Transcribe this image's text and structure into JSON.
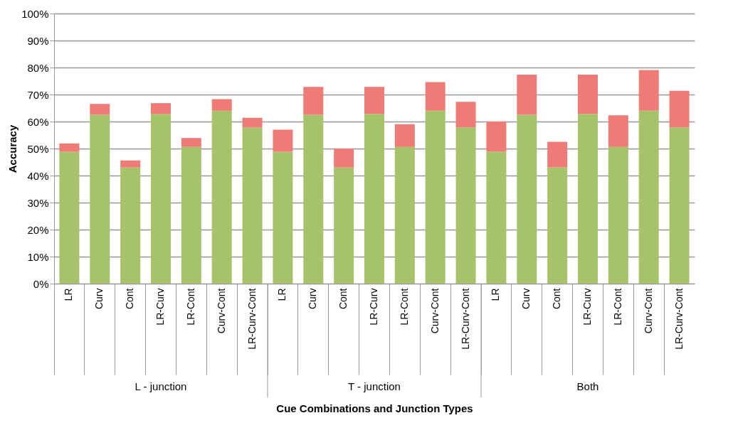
{
  "chart_data": {
    "type": "bar",
    "stacked": true,
    "xlabel": "Cue Combinations and Junction Types",
    "ylabel": "Accuracy",
    "categories": [
      "LR",
      "Curv",
      "Cont",
      "LR-Curv",
      "LR-Cont",
      "Curv-Cont",
      "LR-Curv-Cont",
      "LR",
      "Curv",
      "Cont",
      "LR-Curv",
      "LR-Cont",
      "Curv-Cont",
      "LR-Curv-Cont",
      "LR",
      "Curv",
      "Cont",
      "LR-Curv",
      "LR-Cont",
      "Curv-Cont",
      "LR-Curv-Cont"
    ],
    "series": [
      {
        "color": "#a7c36a",
        "values": [
          48.8,
          62.5,
          43.0,
          62.8,
          50.6,
          64.0,
          57.8,
          48.8,
          62.5,
          43.0,
          62.8,
          50.6,
          64.0,
          57.8,
          48.8,
          62.5,
          43.0,
          62.8,
          50.6,
          64.0,
          57.8
        ]
      },
      {
        "color": "#ef7b76",
        "values": [
          3.1,
          4.0,
          2.6,
          4.0,
          3.3,
          4.3,
          3.6,
          8.2,
          10.3,
          7.0,
          10.0,
          8.4,
          10.6,
          9.5,
          11.2,
          14.9,
          9.5,
          14.6,
          11.7,
          15.1,
          13.6
        ]
      }
    ],
    "annotations": [
      "L - junction",
      "T - junction",
      "Both"
    ],
    "ylim": [
      0,
      100
    ],
    "yticks": [
      {
        "value": 0,
        "label": "0%"
      },
      {
        "value": 10,
        "label": "10%"
      },
      {
        "value": 20,
        "label": "20%"
      },
      {
        "value": 30,
        "label": "30%"
      },
      {
        "value": 40,
        "label": "40%"
      },
      {
        "value": 50,
        "label": "50%"
      },
      {
        "value": 60,
        "label": "60%"
      },
      {
        "value": 70,
        "label": "70%"
      },
      {
        "value": 80,
        "label": "80%"
      },
      {
        "value": 90,
        "label": "90%"
      },
      {
        "value": 100,
        "label": "100%"
      }
    ],
    "grid": "y",
    "legend": false
  }
}
